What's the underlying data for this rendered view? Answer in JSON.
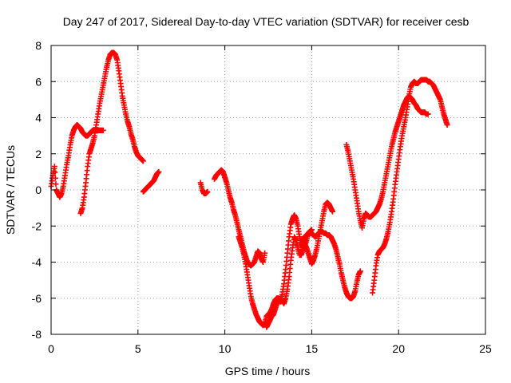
{
  "chart_data": {
    "type": "scatter",
    "title": "Day 247 of 2017, Sidereal Day-to-day VTEC variation (SDTVAR) for receiver cesb",
    "xlabel": "GPS time / hours",
    "ylabel": "SDTVAR / TECUs",
    "xlim": [
      0,
      25
    ],
    "ylim": [
      -8,
      8
    ],
    "x_ticks": [
      "0",
      "5",
      "10",
      "15",
      "20",
      "25"
    ],
    "y_ticks": [
      "-8",
      "-6",
      "-4",
      "-2",
      "0",
      "2",
      "4",
      "6",
      "8"
    ],
    "grid": true,
    "marker": "+",
    "marker_color": "#ff0000",
    "series": [
      {
        "name": "",
        "segments": [
          {
            "x": [
              0.0,
              0.1,
              0.2,
              0.3,
              0.4,
              0.5,
              0.6,
              0.7,
              0.8,
              0.9,
              1.0,
              1.1,
              1.2,
              1.3,
              1.4,
              1.5,
              1.6,
              1.7,
              1.8,
              1.9,
              2.0,
              2.1,
              2.2,
              2.3,
              2.4,
              2.5,
              2.6,
              2.7,
              2.8,
              2.9,
              3.0
            ],
            "y": [
              0.2,
              0.8,
              1.3,
              0.0,
              -0.2,
              -0.4,
              -0.2,
              0.2,
              0.8,
              1.4,
              1.9,
              2.5,
              3.0,
              3.3,
              3.5,
              3.6,
              3.5,
              3.4,
              3.2,
              3.1,
              3.0,
              3.0,
              3.1,
              3.2,
              3.3,
              3.3,
              3.3,
              3.3,
              3.3,
              3.3,
              3.3
            ]
          },
          {
            "x": [
              1.7,
              1.8,
              1.9,
              2.0,
              2.1,
              2.2,
              2.3,
              2.4,
              2.5,
              2.6,
              2.7,
              2.8,
              2.9,
              3.0,
              3.1,
              3.2,
              3.3,
              3.4,
              3.5,
              3.6,
              3.7,
              3.8,
              3.9,
              4.0,
              4.1,
              4.2,
              4.3,
              4.4,
              4.5,
              4.6,
              4.7,
              4.8,
              4.9,
              5.0,
              5.1,
              5.2,
              5.3
            ],
            "y": [
              -1.3,
              -1.0,
              -0.4,
              0.4,
              1.3,
              2.0,
              2.3,
              2.6,
              3.0,
              3.6,
              4.2,
              4.8,
              5.3,
              5.8,
              6.3,
              6.8,
              7.2,
              7.5,
              7.6,
              7.6,
              7.5,
              7.2,
              6.6,
              5.9,
              5.2,
              4.7,
              4.2,
              3.8,
              3.5,
              3.1,
              2.8,
              2.4,
              2.1,
              1.9,
              1.8,
              1.7,
              1.6
            ]
          },
          {
            "x": [
              5.3,
              5.4,
              5.5,
              5.6,
              5.7,
              5.8,
              5.9,
              6.0,
              6.1,
              6.2
            ],
            "y": [
              -0.1,
              0.0,
              0.1,
              0.2,
              0.3,
              0.4,
              0.5,
              0.7,
              0.9,
              1.0
            ]
          },
          {
            "x": [
              8.6,
              8.7,
              8.8,
              8.9,
              9.0
            ],
            "y": [
              0.4,
              0.0,
              -0.2,
              -0.2,
              -0.1
            ]
          },
          {
            "x": [
              9.4,
              9.5,
              9.6,
              9.7,
              9.8,
              9.9,
              10.0,
              10.1,
              10.2,
              10.3,
              10.4,
              10.5,
              10.6,
              10.7,
              10.8,
              10.9,
              11.0,
              11.1,
              11.2,
              11.3,
              11.4,
              11.5,
              11.6,
              11.7,
              11.8,
              11.9,
              12.0,
              12.1,
              12.2,
              12.3
            ],
            "y": [
              0.6,
              0.8,
              0.9,
              1.0,
              1.1,
              1.0,
              0.7,
              0.4,
              0.0,
              -0.4,
              -0.7,
              -1.1,
              -1.4,
              -1.8,
              -2.2,
              -2.6,
              -3.0,
              -3.4,
              -3.7,
              -4.0,
              -4.1,
              -4.2,
              -4.1,
              -4.0,
              -3.7,
              -3.4,
              -3.5,
              -3.8,
              -4.0,
              -3.5
            ]
          },
          {
            "x": [
              10.8,
              10.9,
              11.0,
              11.1,
              11.2,
              11.3,
              11.4,
              11.5,
              11.6,
              11.7,
              11.8,
              11.9,
              12.0,
              12.1,
              12.2,
              12.3,
              12.4,
              12.5,
              12.6,
              12.7,
              12.8,
              12.9,
              13.0,
              13.1,
              13.2,
              13.3,
              13.4,
              13.5,
              13.6,
              13.7,
              13.8,
              13.9,
              14.0,
              14.1,
              14.2,
              14.3,
              14.4,
              14.5,
              14.6,
              14.7,
              14.8,
              14.9,
              15.0
            ],
            "y": [
              -2.6,
              -2.9,
              -3.2,
              -3.6,
              -4.1,
              -4.7,
              -5.3,
              -5.9,
              -6.3,
              -6.6,
              -6.9,
              -7.1,
              -7.3,
              -7.4,
              -7.5,
              -7.4,
              -7.0,
              -6.9,
              -6.8,
              -6.6,
              -6.3,
              -6.1,
              -6.0,
              -6.0,
              -6.2,
              -5.8,
              -5.2,
              -4.4,
              -3.5,
              -2.6,
              -1.9,
              -1.6,
              -1.4,
              -1.6,
              -2.0,
              -2.6,
              -3.0,
              -3.2,
              -3.1,
              -2.8,
              -2.4,
              -2.3,
              -2.2
            ]
          },
          {
            "x": [
              12.4,
              12.5,
              12.6,
              12.7,
              12.8,
              12.9,
              13.0,
              13.1,
              13.2,
              13.3,
              13.4,
              13.5,
              13.6,
              13.7,
              13.8,
              13.9,
              14.0,
              14.1,
              14.2,
              14.3,
              14.4,
              14.5,
              14.6,
              14.7,
              14.8,
              14.9,
              15.0,
              15.1,
              15.2,
              15.3,
              15.4,
              15.5,
              15.6,
              15.7,
              15.8,
              15.9,
              16.0,
              16.1,
              16.2
            ],
            "y": [
              -7.6,
              -7.4,
              -7.2,
              -7.0,
              -6.9,
              -6.6,
              -6.3,
              -6.1,
              -6.0,
              -6.1,
              -6.3,
              -6.0,
              -5.5,
              -4.8,
              -3.9,
              -3.2,
              -2.6,
              -2.8,
              -3.2,
              -3.6,
              -3.6,
              -3.3,
              -3.0,
              -3.2,
              -3.5,
              -3.8,
              -4.1,
              -3.9,
              -3.6,
              -3.2,
              -2.7,
              -2.2,
              -1.7,
              -1.2,
              -0.8,
              -0.7,
              -0.8,
              -1.0,
              -1.2
            ]
          },
          {
            "x": [
              14.4,
              14.5,
              14.6,
              14.7,
              14.8,
              14.9,
              15.0,
              15.1,
              15.2,
              15.3,
              15.4,
              15.5,
              15.6,
              15.7,
              15.8,
              15.9,
              16.0,
              16.1,
              16.2,
              16.3,
              16.4,
              16.5,
              16.6,
              16.7,
              16.8,
              16.9,
              17.0,
              17.1,
              17.2,
              17.3,
              17.4,
              17.5,
              17.6,
              17.7,
              17.8
            ],
            "y": [
              -3.0,
              -2.8,
              -2.6,
              -2.5,
              -2.4,
              -2.4,
              -2.4,
              -2.5,
              -2.6,
              -2.5,
              -2.4,
              -2.3,
              -2.3,
              -2.4,
              -2.4,
              -2.5,
              -2.5,
              -2.6,
              -2.8,
              -3.0,
              -3.3,
              -3.7,
              -4.1,
              -4.6,
              -5.0,
              -5.4,
              -5.7,
              -5.9,
              -6.0,
              -6.0,
              -5.9,
              -5.6,
              -5.1,
              -4.7,
              -4.5
            ]
          },
          {
            "x": [
              17.0,
              17.1,
              17.2,
              17.3,
              17.4,
              17.5,
              17.6,
              17.7,
              17.8,
              17.9,
              18.0,
              18.1,
              18.2,
              18.3,
              18.4,
              18.5,
              18.6,
              18.7,
              18.8,
              18.9,
              19.0,
              19.1,
              19.2,
              19.3,
              19.4,
              19.5,
              19.6,
              19.7,
              19.8,
              19.9,
              20.0,
              20.1,
              20.2,
              20.3,
              20.4,
              20.5,
              20.6,
              20.7,
              20.8,
              20.9,
              21.0,
              21.1,
              21.2,
              21.3,
              21.4,
              21.5,
              21.6,
              21.7
            ],
            "y": [
              2.5,
              2.1,
              1.6,
              1.1,
              0.6,
              0.0,
              -0.6,
              -1.2,
              -1.7,
              -2.1,
              -1.6,
              -1.3,
              -1.4,
              -1.5,
              -1.5,
              -1.4,
              -1.3,
              -1.2,
              -1.0,
              -0.8,
              -0.5,
              -0.1,
              0.4,
              0.9,
              1.4,
              1.9,
              2.4,
              2.8,
              3.2,
              3.5,
              3.8,
              4.1,
              4.4,
              4.7,
              4.9,
              5.1,
              5.2,
              5.1,
              5.0,
              4.8,
              4.7,
              4.5,
              4.4,
              4.3,
              4.3,
              4.3,
              4.2,
              4.2
            ]
          },
          {
            "x": [
              18.5,
              18.6,
              18.7,
              18.8,
              18.9,
              19.0,
              19.1,
              19.2,
              19.3,
              19.4,
              19.5,
              19.6,
              19.7,
              19.8,
              19.9,
              20.0,
              20.1,
              20.2,
              20.3,
              20.4,
              20.5,
              20.6,
              20.7,
              20.8,
              20.9,
              21.0,
              21.1,
              21.2,
              21.3,
              21.4,
              21.5,
              21.6,
              21.7,
              21.8,
              21.9,
              22.0,
              22.1,
              22.2,
              22.3,
              22.4,
              22.5,
              22.6,
              22.7,
              22.8
            ],
            "y": [
              -5.7,
              -5.0,
              -4.2,
              -3.6,
              -3.4,
              -3.3,
              -3.2,
              -3.0,
              -2.7,
              -2.3,
              -1.8,
              -1.2,
              -0.5,
              0.3,
              1.0,
              1.7,
              2.4,
              3.0,
              3.5,
              4.0,
              4.6,
              5.2,
              5.7,
              5.9,
              6.0,
              5.9,
              5.9,
              6.0,
              6.1,
              6.1,
              6.1,
              6.1,
              6.0,
              6.0,
              5.9,
              5.8,
              5.6,
              5.4,
              5.2,
              5.0,
              4.6,
              4.2,
              3.9,
              3.6
            ]
          }
        ]
      }
    ]
  }
}
